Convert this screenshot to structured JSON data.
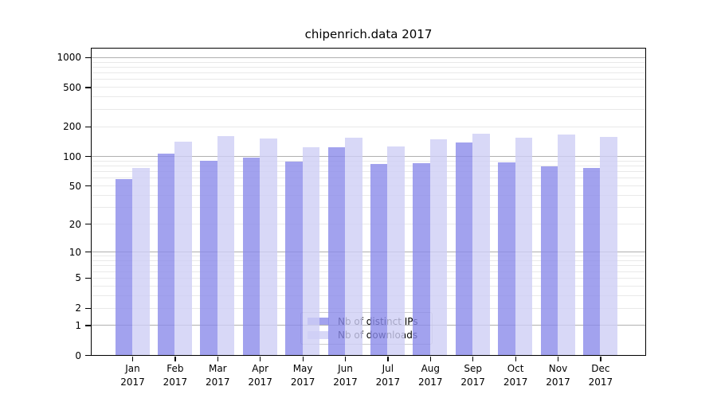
{
  "chart_data": {
    "type": "bar",
    "title": "chipenrich.data 2017",
    "categories": [
      "Jan 2017",
      "Feb 2017",
      "Mar 2017",
      "Apr 2017",
      "May 2017",
      "Jun 2017",
      "Jul 2017",
      "Aug 2017",
      "Sep 2017",
      "Oct 2017",
      "Nov 2017",
      "Dec 2017"
    ],
    "series": [
      {
        "name": "Nb of distinct IPs",
        "color": "#a2a2ee",
        "values": [
          58,
          105,
          89,
          96,
          88,
          122,
          83,
          84,
          137,
          86,
          78,
          76
        ]
      },
      {
        "name": "Nb of downloads",
        "color": "#d8d8f7",
        "values": [
          75,
          140,
          160,
          150,
          124,
          155,
          125,
          148,
          170,
          153,
          165,
          156
        ]
      }
    ],
    "xlabel": "",
    "ylabel": "",
    "yscale": "log1p",
    "yticks": [
      1000,
      500,
      200,
      100,
      50,
      20,
      10,
      5,
      2,
      1,
      0
    ],
    "ylim": [
      0,
      1230
    ],
    "grid": "horizontal, log minor lines",
    "legend_position": "lower-center",
    "colors": {
      "major_grid": "#b0b0b0",
      "minor_grid": "#e9e9e9",
      "axis": "#000000",
      "text": "#000000",
      "legend_border": "#cccccc",
      "background": "#ffffff"
    }
  }
}
